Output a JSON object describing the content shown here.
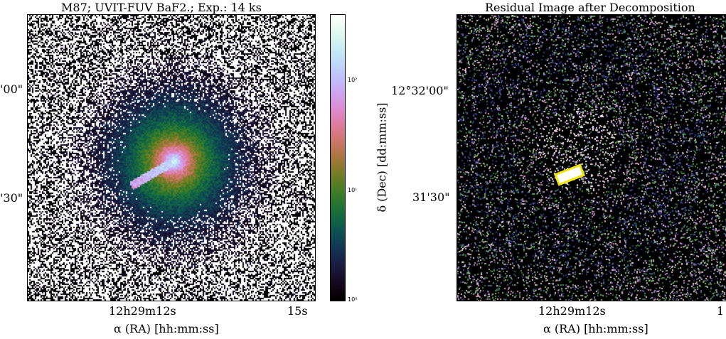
{
  "left_panel": {
    "title": "M87; UVIT-FUV BaF2.; Exp.: 14 ks",
    "ytick_labels": [
      "'00\"",
      "'30\""
    ],
    "xtick_labels": [
      "12h29m12s",
      "15s"
    ],
    "xlabel": "α (RA) [hh:mm:ss]"
  },
  "colorbar": {
    "label": "δ (Dec) [dd:mm:ss]",
    "tick_labels": [
      "10²",
      "10¹",
      "10⁰"
    ],
    "colormap": "cubehelix",
    "scale": "log"
  },
  "right_panel": {
    "title": "Residual Image after Decomposition",
    "ytick_labels": [
      "12°32'00\"",
      "31'30\""
    ],
    "xtick_labels": [
      "12h29m12s",
      "1"
    ],
    "xlabel": "α (RA) [hh:mm:ss]",
    "region_color": "#f2e600"
  }
}
